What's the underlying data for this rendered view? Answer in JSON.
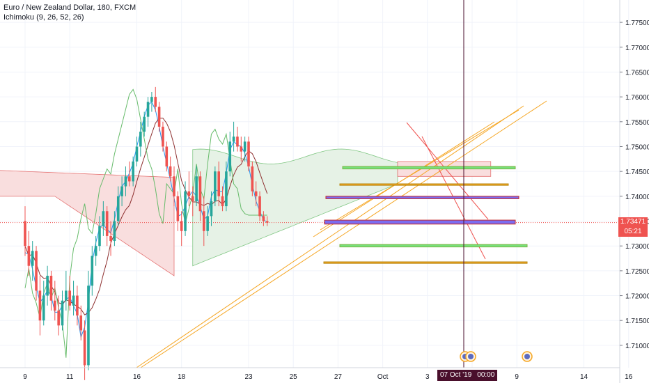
{
  "legend": {
    "symbol": "Euro / New Zealand Dollar, 180, FXCM",
    "indicator": "Ichimoku (9, 26, 52, 26)"
  },
  "price_axis": {
    "current_price": "1.73471",
    "countdown": "05:21",
    "current_price_color": "#ef5350",
    "countdown_color": "#ef5350"
  },
  "crosshair": {
    "date": "07 Oct '19",
    "time": "00:00"
  },
  "colors": {
    "bull": "#26a69a",
    "bear": "#ef5350",
    "cloud_bull": "#e6f2e6",
    "cloud_bear": "#f9dede",
    "trendline": "#f5a623",
    "box_blue": "#7b6cf0",
    "box_green": "#76e07a",
    "box_gold_edge": "#b8860b",
    "crosshair": "#4a0f2c"
  },
  "chart_data": {
    "type": "candlestick",
    "title": "Euro / New Zealand Dollar, 180, FXCM",
    "indicator": "Ichimoku (9, 26, 52, 26)",
    "current_price": 1.73471,
    "y_ticks": [
      "1.77500",
      "1.77000",
      "1.76500",
      "1.76000",
      "1.75500",
      "1.75000",
      "1.74500",
      "1.74000",
      "1.73500",
      "1.73000",
      "1.72500",
      "1.72000",
      "1.71500",
      "1.71000"
    ],
    "y_tick_values": [
      1.775,
      1.77,
      1.765,
      1.76,
      1.755,
      1.75,
      1.745,
      1.74,
      1.735,
      1.73,
      1.725,
      1.72,
      1.715,
      1.71
    ],
    "x_ticks": [
      "9",
      "11",
      "16",
      "18",
      "23",
      "25",
      "27",
      "Oct",
      "3",
      "7",
      "9",
      "14",
      "16"
    ],
    "x_tick_index": [
      0,
      12,
      30,
      42,
      60,
      72,
      84,
      96,
      108,
      120,
      132,
      150,
      162
    ],
    "ylim": [
      1.7055,
      1.7795
    ],
    "grid": true,
    "candles_ohlc": [
      [
        1.735,
        1.738,
        1.728,
        1.73
      ],
      [
        1.73,
        1.733,
        1.724,
        1.726
      ],
      [
        1.726,
        1.731,
        1.723,
        1.729
      ],
      [
        1.729,
        1.73,
        1.719,
        1.721
      ],
      [
        1.721,
        1.724,
        1.712,
        1.715
      ],
      [
        1.715,
        1.723,
        1.714,
        1.72
      ],
      [
        1.72,
        1.726,
        1.718,
        1.724
      ],
      [
        1.724,
        1.725,
        1.717,
        1.719
      ],
      [
        1.719,
        1.723,
        1.715,
        1.717
      ],
      [
        1.717,
        1.72,
        1.712,
        1.714
      ],
      [
        1.714,
        1.721,
        1.713,
        1.719
      ],
      [
        1.719,
        1.725,
        1.717,
        1.721
      ],
      [
        1.721,
        1.724,
        1.717,
        1.718
      ],
      [
        1.718,
        1.723,
        1.716,
        1.72
      ],
      [
        1.72,
        1.722,
        1.714,
        1.716
      ],
      [
        1.716,
        1.718,
        1.711,
        1.713
      ],
      [
        1.713,
        1.715,
        1.703,
        1.706
      ],
      [
        1.706,
        1.725,
        1.705,
        1.722
      ],
      [
        1.722,
        1.73,
        1.72,
        1.728
      ],
      [
        1.728,
        1.732,
        1.726,
        1.73
      ],
      [
        1.73,
        1.736,
        1.729,
        1.734
      ],
      [
        1.734,
        1.739,
        1.732,
        1.737
      ],
      [
        1.737,
        1.738,
        1.73,
        1.732
      ],
      [
        1.732,
        1.735,
        1.728,
        1.731
      ],
      [
        1.731,
        1.737,
        1.73,
        1.735
      ],
      [
        1.735,
        1.742,
        1.734,
        1.74
      ],
      [
        1.74,
        1.744,
        1.738,
        1.742
      ],
      [
        1.742,
        1.746,
        1.74,
        1.744
      ],
      [
        1.744,
        1.747,
        1.742,
        1.743
      ],
      [
        1.743,
        1.748,
        1.742,
        1.747
      ],
      [
        1.747,
        1.752,
        1.746,
        1.75
      ],
      [
        1.75,
        1.755,
        1.748,
        1.753
      ],
      [
        1.753,
        1.757,
        1.752,
        1.756
      ],
      [
        1.756,
        1.76,
        1.754,
        1.759
      ],
      [
        1.759,
        1.761,
        1.757,
        1.76
      ],
      [
        1.76,
        1.762,
        1.757,
        1.758
      ],
      [
        1.758,
        1.759,
        1.753,
        1.754
      ],
      [
        1.754,
        1.755,
        1.749,
        1.75
      ],
      [
        1.75,
        1.751,
        1.745,
        1.746
      ],
      [
        1.746,
        1.748,
        1.743,
        1.744
      ],
      [
        1.744,
        1.746,
        1.738,
        1.74
      ],
      [
        1.74,
        1.741,
        1.733,
        1.735
      ],
      [
        1.735,
        1.737,
        1.73,
        1.733
      ],
      [
        1.733,
        1.743,
        1.732,
        1.741
      ],
      [
        1.741,
        1.745,
        1.738,
        1.74
      ],
      [
        1.74,
        1.742,
        1.736,
        1.739
      ],
      [
        1.739,
        1.746,
        1.738,
        1.744
      ],
      [
        1.744,
        1.745,
        1.735,
        1.737
      ],
      [
        1.737,
        1.74,
        1.73,
        1.733
      ],
      [
        1.733,
        1.738,
        1.732,
        1.736
      ],
      [
        1.736,
        1.741,
        1.734,
        1.739
      ],
      [
        1.739,
        1.746,
        1.738,
        1.745
      ],
      [
        1.745,
        1.747,
        1.738,
        1.74
      ],
      [
        1.74,
        1.742,
        1.737,
        1.738
      ],
      [
        1.738,
        1.747,
        1.737,
        1.745
      ],
      [
        1.745,
        1.753,
        1.744,
        1.751
      ],
      [
        1.751,
        1.755,
        1.749,
        1.752
      ],
      [
        1.752,
        1.754,
        1.749,
        1.75
      ],
      [
        1.75,
        1.752,
        1.747,
        1.749
      ],
      [
        1.749,
        1.752,
        1.747,
        1.751
      ],
      [
        1.751,
        1.752,
        1.745,
        1.746
      ],
      [
        1.746,
        1.747,
        1.74,
        1.741
      ],
      [
        1.741,
        1.743,
        1.738,
        1.74
      ],
      [
        1.74,
        1.741,
        1.735,
        1.736
      ],
      [
        1.736,
        1.737,
        1.734,
        1.735
      ],
      [
        1.735,
        1.736,
        1.734,
        1.7347
      ]
    ],
    "ichimoku_note": "Tenkan, Kijun, Chikou and Senkou span cloud overlays",
    "horizontal_zones": [
      {
        "kind": "green",
        "y1": 1.7455,
        "y2": 1.746
      },
      {
        "kind": "gold",
        "y1": 1.7422,
        "y2": 1.7425
      },
      {
        "kind": "blue",
        "y1": 1.7395,
        "y2": 1.74
      },
      {
        "kind": "blue",
        "y1": 1.7344,
        "y2": 1.7352
      },
      {
        "kind": "green",
        "y1": 1.7298,
        "y2": 1.7303
      },
      {
        "kind": "gold",
        "y1": 1.7265,
        "y2": 1.7268
      }
    ]
  }
}
